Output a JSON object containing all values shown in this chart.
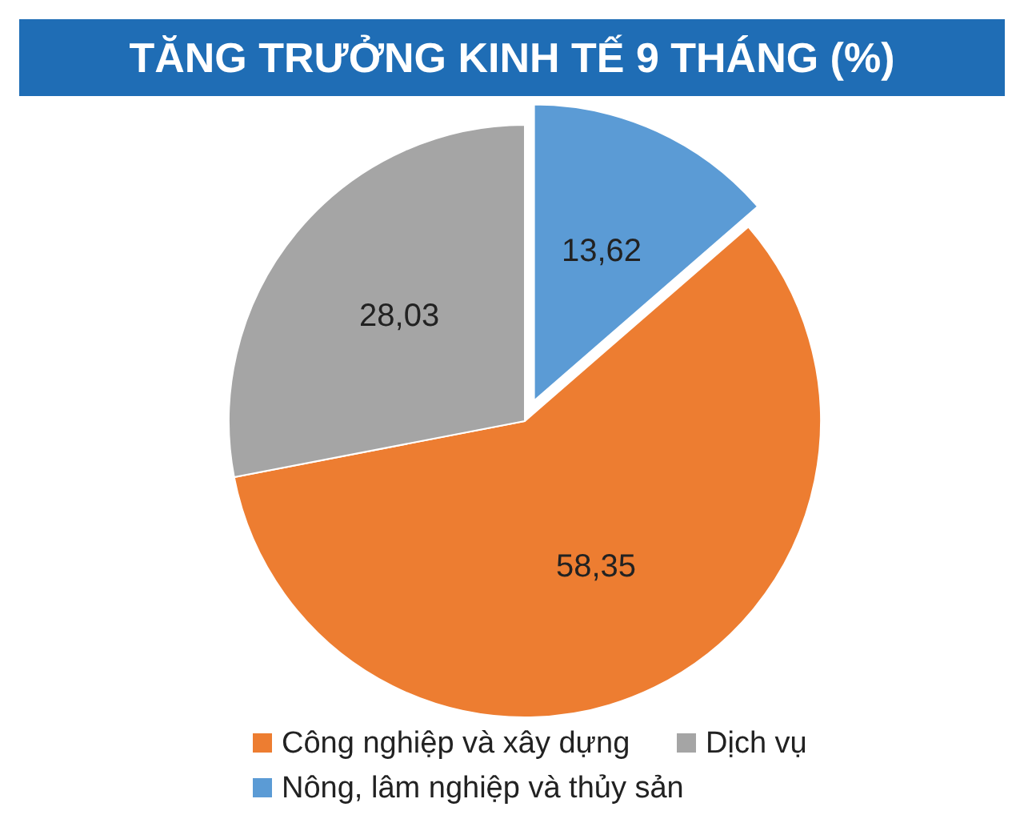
{
  "chart_data": {
    "type": "pie",
    "title": "TĂNG TRƯỞNG KINH TẾ 9 THÁNG (%)",
    "categories": [
      "Công nghiệp và xây dựng",
      "Dịch vụ",
      "Nông, lâm nghiệp và thủy sản"
    ],
    "values": [
      58.35,
      28.03,
      13.62
    ],
    "colors": [
      "#ed7d31",
      "#a5a5a5",
      "#5b9bd5"
    ],
    "value_labels": [
      "58,35",
      "28,03",
      "13,62"
    ],
    "legend": "bottom"
  }
}
